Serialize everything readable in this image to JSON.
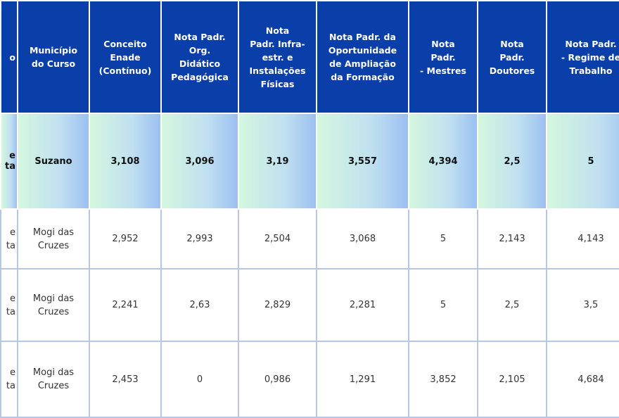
{
  "headers": [
    {
      "label": "o"
    },
    {
      "label": "Município do Curso"
    },
    {
      "label": "Conceito Enade (Contínuo)"
    },
    {
      "label": "Nota Padr. Org. Didático Pedagógica"
    },
    {
      "label": "Nota Padr. Infra- estr. e Instalações Físicas"
    },
    {
      "label": "Nota Padr. da Oportunidade de Ampliação da Formação"
    },
    {
      "label": "Nota Padr. - Mestres"
    },
    {
      "label": "Nota Padr. Doutores"
    },
    {
      "label": "Nota Padr. - Regime de Trabalho"
    }
  ],
  "rows": [
    {
      "highlight": true,
      "cells": [
        "e\nta",
        "Suzano",
        "3,108",
        "3,096",
        "3,19",
        "3,557",
        "4,394",
        "2,5",
        "5"
      ]
    },
    {
      "highlight": false,
      "cells": [
        "e\nta",
        "Mogi das\nCruzes",
        "2,952",
        "2,993",
        "2,504",
        "3,068",
        "5",
        "2,143",
        "4,143"
      ]
    },
    {
      "highlight": false,
      "cells": [
        "e\nta",
        "Mogi das\nCruzes",
        "2,241",
        "2,63",
        "2,829",
        "2,281",
        "5",
        "2,5",
        "3,5"
      ]
    },
    {
      "highlight": false,
      "cells": [
        "e\nta",
        "Mogi das\nCruzes",
        "2,453",
        "0",
        "0,986",
        "1,291",
        "3,852",
        "2,105",
        "4,684"
      ]
    }
  ]
}
